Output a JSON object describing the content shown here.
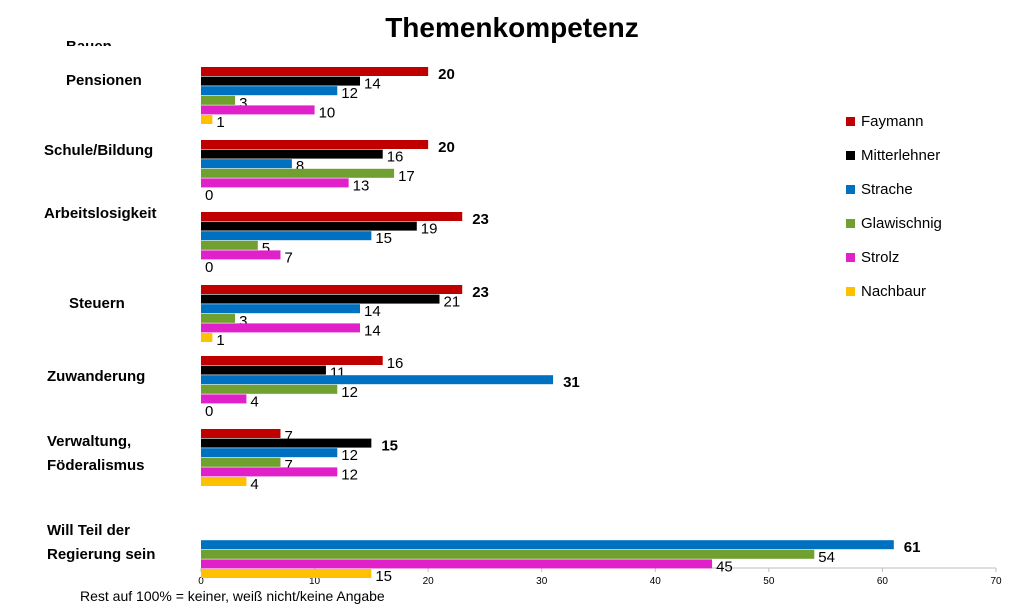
{
  "chart_data": {
    "type": "bar",
    "orientation": "horizontal",
    "title": "Themenkompetenz",
    "cut_off_label": "Bauen",
    "footnote": "Rest auf 100% = keiner, weiß nicht/keine Angabe",
    "xlim": [
      0,
      70
    ],
    "xticks": [
      "0",
      "10",
      "20",
      "30",
      "40",
      "50",
      "60",
      "70"
    ],
    "grid": false,
    "legend_position": "right",
    "series": [
      {
        "name": "Faymann",
        "color": "#c00000"
      },
      {
        "name": "Mitterlehner",
        "color": "#000000"
      },
      {
        "name": "Strache",
        "color": "#0070c0"
      },
      {
        "name": "Glawischnig",
        "color": "#70a030"
      },
      {
        "name": "Strolz",
        "color": "#e020c8"
      },
      {
        "name": "Nachbaur",
        "color": "#ffc000"
      }
    ],
    "categories": [
      {
        "label": [
          "Pensionen"
        ],
        "values": [
          20,
          14,
          12,
          3,
          10,
          1
        ],
        "highlight": 0
      },
      {
        "label": [
          "Schule/Bildung"
        ],
        "values": [
          20,
          16,
          8,
          17,
          13,
          0
        ],
        "highlight": 0
      },
      {
        "label": [
          "Arbeitslosigkeit"
        ],
        "values": [
          23,
          19,
          15,
          5,
          7,
          0
        ],
        "highlight": 0
      },
      {
        "label": [
          "Steuern"
        ],
        "values": [
          23,
          21,
          14,
          3,
          14,
          1
        ],
        "highlight": 0
      },
      {
        "label": [
          "Zuwanderung"
        ],
        "values": [
          16,
          11,
          31,
          12,
          4,
          0
        ],
        "highlight": 2
      },
      {
        "label": [
          "Verwaltung,",
          "Föderalismus"
        ],
        "values": [
          7,
          15,
          12,
          7,
          12,
          4
        ],
        "highlight": 1
      },
      {
        "label": [
          "Will Teil der",
          "Regierung sein"
        ],
        "values": [
          null,
          null,
          61,
          54,
          45,
          15
        ],
        "highlight": 2
      }
    ]
  }
}
